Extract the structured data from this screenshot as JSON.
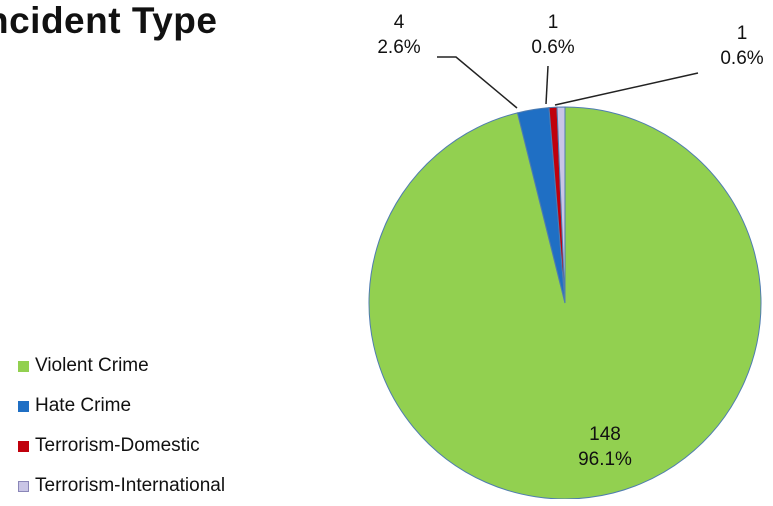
{
  "chart_data": {
    "type": "pie",
    "title": "ncident Type",
    "slices": [
      {
        "name": "Violent Crime",
        "value": 148,
        "percent": "96.1%",
        "color": "#92d050"
      },
      {
        "name": "Hate Crime",
        "value": 4,
        "percent": "2.6%",
        "color": "#1f6fc4"
      },
      {
        "name": "Terrorism-Domestic",
        "value": 1,
        "percent": "0.6%",
        "color": "#c0000c"
      },
      {
        "name": "Terrorism-International",
        "value": 1,
        "percent": "0.6%",
        "color": "#c9c5e6"
      }
    ],
    "legend_position": "left"
  }
}
